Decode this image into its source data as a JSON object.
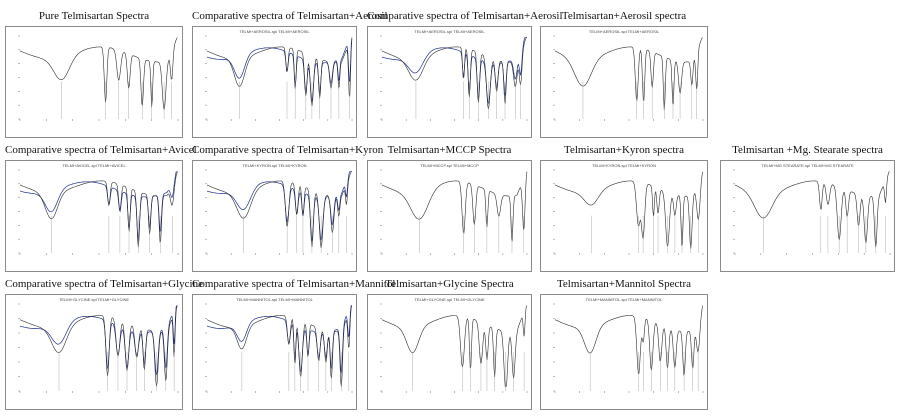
{
  "figure": {
    "panels": [
      {
        "title": "Pure Telmisartan Spectra",
        "header": "",
        "overlay": false,
        "peaks": 7,
        "seed": 3
      },
      {
        "title": "Comparative spectra of Telmisartan+Aerosil",
        "header": "TELMI+AEROSIL.spl TELMI+AEROSIL",
        "overlay": true,
        "peaks": 8,
        "seed": 7
      },
      {
        "title": "Comparative spectra of Telmisartan+Aerosil",
        "header": "TELMI+AEROSIL.spl TELMI+AEROSIL",
        "overlay": true,
        "peaks": 8,
        "seed": 11
      },
      {
        "title": "Telmisartan+Aerosil spectra",
        "header": "TELMI+AEROSIL.spl TELMI+AEROSIL",
        "overlay": false,
        "peaks": 8,
        "seed": 13
      },
      {
        "title": "Comparative spectra of Telmisartan+Avicel",
        "header": "TELMI+AVICEL.spl TELMI+AVICEL",
        "overlay": true,
        "peaks": 7,
        "seed": 17
      },
      {
        "title": "Comparative spectra of Telmisartan+Kyron",
        "header": "TELMI+KYRON.spl TELMI+KYRON",
        "overlay": true,
        "peaks": 8,
        "seed": 19
      },
      {
        "title": "Telmisartan+MCCP Spectra",
        "header": "TELMI+MCCP.spl TELMI+MCCP",
        "overlay": false,
        "peaks": 6,
        "seed": 23
      },
      {
        "title": "Telmisartan+Kyron spectra",
        "header": "TELMI+KYRON.spl TELMI+KYRON",
        "overlay": false,
        "peaks": 9,
        "seed": 29
      },
      {
        "title": "Telmisartan +Mg. Stearate spectra",
        "header": "TELMI+MG STEARATE.spl TELMI+MG STEARATE",
        "overlay": false,
        "peaks": 8,
        "seed": 31
      },
      {
        "title": "Comparative spectra of Telmisartan+Glycine",
        "header": "TELMI+GLYCINE.spl TELMI+GLYCINE",
        "overlay": true,
        "peaks": 8,
        "seed": 37
      },
      {
        "title": "Comparative spectra of Telmisartan+Mannitol",
        "header": "TELMI+MANNITOL.spl TELMI+MANNITOL",
        "overlay": true,
        "peaks": 9,
        "seed": 41
      },
      {
        "title": "Telmisartan+Glycine Spectra",
        "header": "TELMI+GLYCINE.spl TELMI+GLYCINE",
        "overlay": false,
        "peaks": 8,
        "seed": 43
      },
      {
        "title": "Telmisartan+Mannitol Spectra",
        "header": "TELMI+MANNITOL.spl TELMI+MANNITOL",
        "overlay": false,
        "peaks": 9,
        "seed": 47
      }
    ],
    "colors": {
      "trace": "#2b2b2b",
      "overlay_trace": "#1c2e8f",
      "frame": "#8a8a8a"
    }
  }
}
